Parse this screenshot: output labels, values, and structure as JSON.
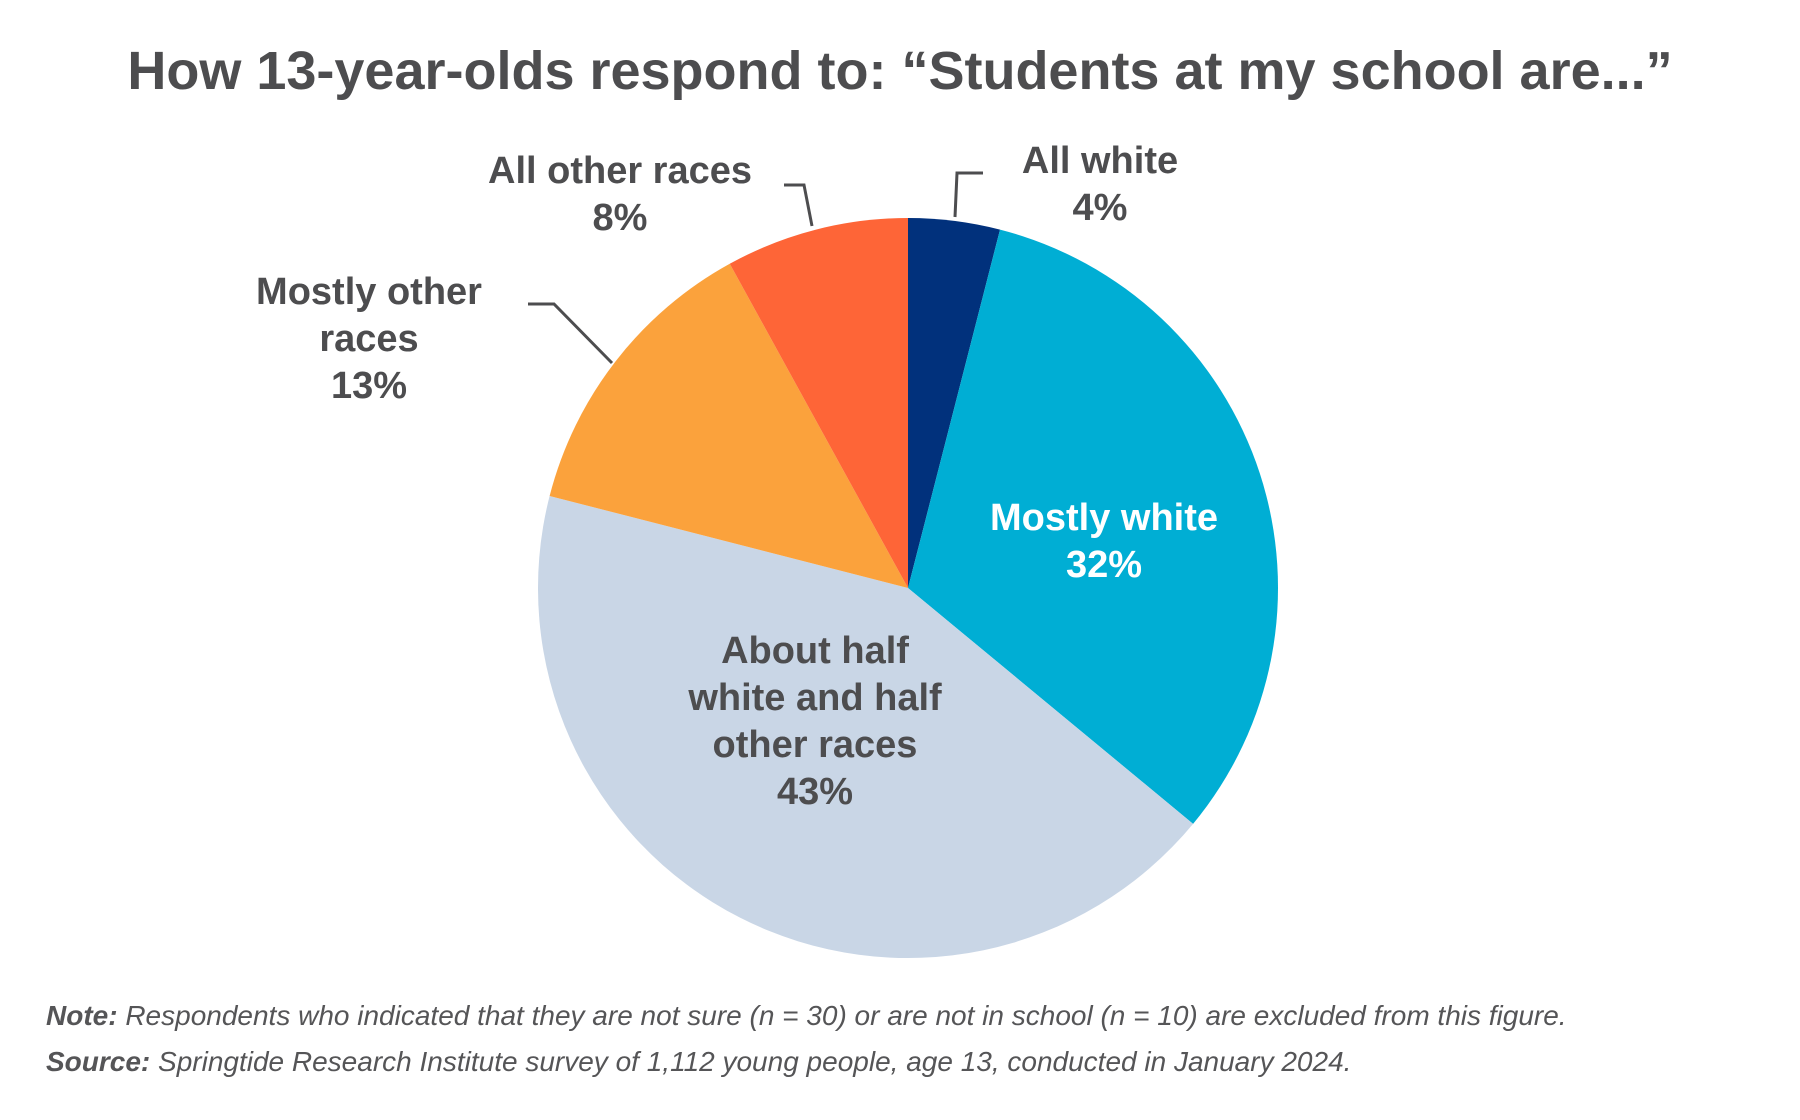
{
  "chart_data": {
    "type": "pie",
    "title": "How 13-year-olds respond to: “Students at my school are...”",
    "slices": [
      {
        "label": [
          "All white"
        ],
        "value_label": "4%",
        "value": 4,
        "color": "#01317c",
        "text_color": "#4d4d4f",
        "outside": true
      },
      {
        "label": [
          "Mostly white"
        ],
        "value_label": "32%",
        "value": 32,
        "color": "#00aed4",
        "text_color": "#ffffff",
        "outside": false
      },
      {
        "label": [
          "About half",
          "white and half",
          "other races"
        ],
        "value_label": "43%",
        "value": 43,
        "color": "#c9d6e6",
        "text_color": "#4d4d4f",
        "outside": false
      },
      {
        "label": [
          "Mostly other",
          "races"
        ],
        "value_label": "13%",
        "value": 13,
        "color": "#fba23c",
        "text_color": "#4d4d4f",
        "outside": true
      },
      {
        "label": [
          "All other races"
        ],
        "value_label": "8%",
        "value": 8,
        "color": "#fe6537",
        "text_color": "#4d4d4f",
        "outside": true
      }
    ]
  },
  "footer": {
    "note_label": "Note:",
    "note_text": "Respondents who indicated that they are not sure (n = 30) or are not in school (n = 10) are excluded from this figure.",
    "source_label": "Source:",
    "source_text": "Springtide Research Institute survey of 1,112 young people, age 13, conducted in January 2024."
  }
}
